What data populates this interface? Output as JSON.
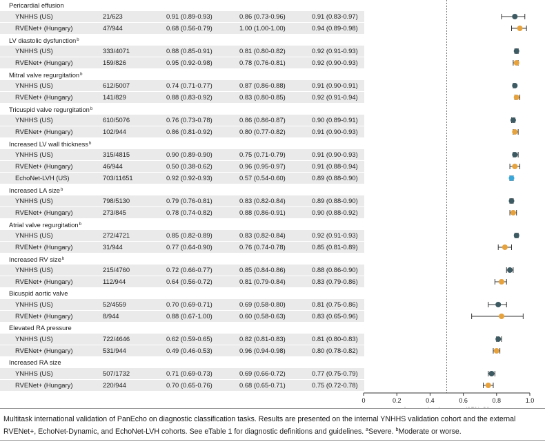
{
  "caption": {
    "text": "Multitask international validation of PanEcho on diagnostic classification tasks. Results are presented on the internal YNHHS validation cohort and the external RVENet+, EchoNet-Dynamic, and EchoNet-LVH cohorts. See eTable 1 for diagnostic definitions and guidelines. ",
    "fn_a_mark": "a",
    "fn_a_text": "Severe. ",
    "fn_b_mark": "b",
    "fn_b_text": "Moderate or worse."
  },
  "colors": {
    "YNHHS (US)": "#3d5a63",
    "RVENet+ (Hungary)": "#e6a23c",
    "EchoNet-LVH (US)": "#3ba7d9",
    "row_fill": "#eaeaea",
    "reference_line": "#555555"
  },
  "chart_data": {
    "type": "forest",
    "xlabel": "Area under the curve (95% CI)",
    "xlim": [
      0,
      1.0
    ],
    "xticks": [
      "0",
      "0.2",
      "0.4",
      "0.6",
      "0.8",
      "1.0"
    ],
    "reference_line": 0.5,
    "tasks": [
      {
        "name": "Pericardial effusion",
        "sup": "",
        "rows": [
          {
            "cohort": "YNHHS (US)",
            "n": "21/623",
            "sens": "0.91 (0.89-0.93)",
            "spec": "0.86 (0.73-0.96)",
            "auc_text": "0.91 (0.83-0.97)",
            "auc": 0.91,
            "lo": 0.83,
            "hi": 0.97
          },
          {
            "cohort": "RVENet+ (Hungary)",
            "n": "47/944",
            "sens": "0.68 (0.56-0.79)",
            "spec": "1.00 (1.00-1.00)",
            "auc_text": "0.94 (0.89-0.98)",
            "auc": 0.94,
            "lo": 0.89,
            "hi": 0.98
          }
        ]
      },
      {
        "name": "LV diastolic dysfunction",
        "sup": "b",
        "rows": [
          {
            "cohort": "YNHHS (US)",
            "n": "333/4071",
            "sens": "0.88 (0.85-0.91)",
            "spec": "0.81 (0.80-0.82)",
            "auc_text": "0.92 (0.91-0.93)",
            "auc": 0.92,
            "lo": 0.91,
            "hi": 0.93
          },
          {
            "cohort": "RVENet+ (Hungary)",
            "n": "159/826",
            "sens": "0.95 (0.92-0.98)",
            "spec": "0.78 (0.76-0.81)",
            "auc_text": "0.92 (0.90-0.93)",
            "auc": 0.92,
            "lo": 0.9,
            "hi": 0.93
          }
        ]
      },
      {
        "name": "Mitral valve regurgitation",
        "sup": "b",
        "rows": [
          {
            "cohort": "YNHHS (US)",
            "n": "612/5007",
            "sens": "0.74 (0.71-0.77)",
            "spec": "0.87 (0.86-0.88)",
            "auc_text": "0.91 (0.90-0.91)",
            "auc": 0.91,
            "lo": 0.9,
            "hi": 0.91
          },
          {
            "cohort": "RVENet+ (Hungary)",
            "n": "141/829",
            "sens": "0.88 (0.83-0.92)",
            "spec": "0.83 (0.80-0.85)",
            "auc_text": "0.92 (0.91-0.94)",
            "auc": 0.92,
            "lo": 0.91,
            "hi": 0.94
          }
        ]
      },
      {
        "name": "Tricuspid valve regurgitation",
        "sup": "b",
        "rows": [
          {
            "cohort": "YNHHS (US)",
            "n": "610/5076",
            "sens": "0.76 (0.73-0.78)",
            "spec": "0.86 (0.86-0.87)",
            "auc_text": "0.90 (0.89-0.91)",
            "auc": 0.9,
            "lo": 0.89,
            "hi": 0.91
          },
          {
            "cohort": "RVENet+ (Hungary)",
            "n": "102/944",
            "sens": "0.86 (0.81-0.92)",
            "spec": "0.80 (0.77-0.82)",
            "auc_text": "0.91 (0.90-0.93)",
            "auc": 0.91,
            "lo": 0.9,
            "hi": 0.93
          }
        ]
      },
      {
        "name": "Increased LV wall thickness",
        "sup": "b",
        "rows": [
          {
            "cohort": "YNHHS (US)",
            "n": "315/4815",
            "sens": "0.90 (0.89-0.90)",
            "spec": "0.75 (0.71-0.79)",
            "auc_text": "0.91 (0.90-0.93)",
            "auc": 0.91,
            "lo": 0.9,
            "hi": 0.93
          },
          {
            "cohort": "RVENet+ (Hungary)",
            "n": "46/944",
            "sens": "0.50 (0.38-0.62)",
            "spec": "0.96 (0.95-0.97)",
            "auc_text": "0.91 (0.88-0.94)",
            "auc": 0.91,
            "lo": 0.88,
            "hi": 0.94
          },
          {
            "cohort": "EchoNet-LVH (US)",
            "n": "703/11651",
            "sens": "0.92 (0.92-0.93)",
            "spec": "0.57 (0.54-0.60)",
            "auc_text": "0.89 (0.88-0.90)",
            "auc": 0.89,
            "lo": 0.88,
            "hi": 0.9
          }
        ]
      },
      {
        "name": "Increased LA size",
        "sup": "b",
        "rows": [
          {
            "cohort": "YNHHS (US)",
            "n": "798/5130",
            "sens": "0.79 (0.76-0.81)",
            "spec": "0.83 (0.82-0.84)",
            "auc_text": "0.89 (0.88-0.90)",
            "auc": 0.89,
            "lo": 0.88,
            "hi": 0.9
          },
          {
            "cohort": "RVENet+ (Hungary)",
            "n": "273/845",
            "sens": "0.78 (0.74-0.82)",
            "spec": "0.88 (0.86-0.91)",
            "auc_text": "0.90 (0.88-0.92)",
            "auc": 0.9,
            "lo": 0.88,
            "hi": 0.92
          }
        ]
      },
      {
        "name": "Atrial valve regurgitation",
        "sup": "b",
        "rows": [
          {
            "cohort": "YNHHS (US)",
            "n": "272/4721",
            "sens": "0.85 (0.82-0.89)",
            "spec": "0.83 (0.82-0.84)",
            "auc_text": "0.92 (0.91-0.93)",
            "auc": 0.92,
            "lo": 0.91,
            "hi": 0.93
          },
          {
            "cohort": "RVENet+ (Hungary)",
            "n": "31/944",
            "sens": "0.77 (0.64-0.90)",
            "spec": "0.76 (0.74-0.78)",
            "auc_text": "0.85 (0.81-0.89)",
            "auc": 0.85,
            "lo": 0.81,
            "hi": 0.89
          }
        ]
      },
      {
        "name": "Increased RV size",
        "sup": "b",
        "rows": [
          {
            "cohort": "YNHHS (US)",
            "n": "215/4760",
            "sens": "0.72 (0.66-0.77)",
            "spec": "0.85 (0.84-0.86)",
            "auc_text": "0.88 (0.86-0.90)",
            "auc": 0.88,
            "lo": 0.86,
            "hi": 0.9
          },
          {
            "cohort": "RVENet+ (Hungary)",
            "n": "112/944",
            "sens": "0.64 (0.56-0.72)",
            "spec": "0.81 (0.79-0.84)",
            "auc_text": "0.83 (0.79-0.86)",
            "auc": 0.83,
            "lo": 0.79,
            "hi": 0.86
          }
        ]
      },
      {
        "name": "Bicuspid aortic valve",
        "sup": "",
        "rows": [
          {
            "cohort": "YNHHS (US)",
            "n": "52/4559",
            "sens": "0.70 (0.69-0.71)",
            "spec": "0.69 (0.58-0.80)",
            "auc_text": "0.81 (0.75-0.86)",
            "auc": 0.81,
            "lo": 0.75,
            "hi": 0.86
          },
          {
            "cohort": "RVENet+ (Hungary)",
            "n": "8/944",
            "sens": "0.88 (0.67-1.00)",
            "spec": "0.60 (0.58-0.63)",
            "auc_text": "0.83 (0.65-0.96)",
            "auc": 0.83,
            "lo": 0.65,
            "hi": 0.96
          }
        ]
      },
      {
        "name": "Elevated RA pressure",
        "sup": "",
        "rows": [
          {
            "cohort": "YNHHS (US)",
            "n": "722/4646",
            "sens": "0.62 (0.59-0.65)",
            "spec": "0.82 (0.81-0.83)",
            "auc_text": "0.81 (0.80-0.83)",
            "auc": 0.81,
            "lo": 0.8,
            "hi": 0.83
          },
          {
            "cohort": "RVENet+ (Hungary)",
            "n": "531/944",
            "sens": "0.49 (0.46-0.53)",
            "spec": "0.96 (0.94-0.98)",
            "auc_text": "0.80 (0.78-0.82)",
            "auc": 0.8,
            "lo": 0.78,
            "hi": 0.82
          }
        ]
      },
      {
        "name": "Increased RA size",
        "sup": "",
        "rows": [
          {
            "cohort": "YNHHS (US)",
            "n": "507/1732",
            "sens": "0.71 (0.69-0.73)",
            "spec": "0.69 (0.66-0.72)",
            "auc_text": "0.77 (0.75-0.79)",
            "auc": 0.77,
            "lo": 0.75,
            "hi": 0.79
          },
          {
            "cohort": "RVENet+ (Hungary)",
            "n": "220/944",
            "sens": "0.70 (0.65-0.76)",
            "spec": "0.68 (0.65-0.71)",
            "auc_text": "0.75 (0.72-0.78)",
            "auc": 0.75,
            "lo": 0.72,
            "hi": 0.78
          }
        ]
      }
    ]
  }
}
